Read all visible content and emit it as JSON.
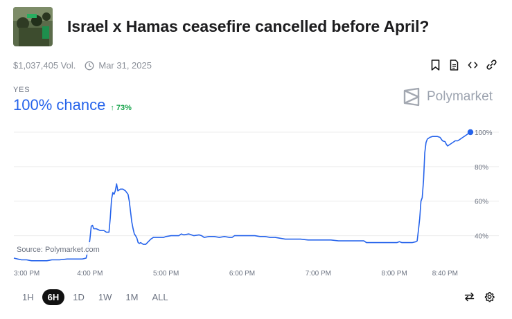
{
  "market": {
    "title": "Israel x Hamas ceasefire cancelled before April?",
    "volume": "$1,037,405 Vol.",
    "end_date": "Mar 31, 2025",
    "outcome_label": "YES",
    "chance_text": "100% chance",
    "change_text": "73%",
    "brand": "Polymarket",
    "source": "Source: Polymarket.com"
  },
  "icons": {
    "bookmark": "bookmark-icon",
    "document": "document-icon",
    "embed": "code-icon",
    "link": "link-icon",
    "clock": "clock-icon",
    "swap": "swap-icon",
    "settings": "gear-icon"
  },
  "range_controls": [
    {
      "label": "1H",
      "active": false
    },
    {
      "label": "6H",
      "active": true
    },
    {
      "label": "1D",
      "active": false
    },
    {
      "label": "1W",
      "active": false
    },
    {
      "label": "1M",
      "active": false
    },
    {
      "label": "ALL",
      "active": false
    }
  ],
  "colors": {
    "accent": "#2563eb",
    "positive": "#16a34a",
    "muted": "#8a8f98",
    "grid": "#ececec"
  },
  "chart_data": {
    "type": "line",
    "x_unit": "time",
    "y_unit": "percent",
    "x_tick_labels": [
      "3:00 PM",
      "4:00 PM",
      "5:00 PM",
      "6:00 PM",
      "7:00 PM",
      "8:00 PM",
      "8:40 PM"
    ],
    "x_tick_values": [
      0,
      60,
      120,
      180,
      240,
      300,
      340
    ],
    "y_tick_labels": [
      "40%",
      "60%",
      "80%",
      "100%"
    ],
    "y_tick_values": [
      40,
      60,
      80,
      100
    ],
    "xlim": [
      0,
      360
    ],
    "ylim": [
      25,
      100
    ],
    "grid": true,
    "series": [
      {
        "points": [
          [
            0,
            27
          ],
          [
            3,
            26.5
          ],
          [
            6,
            26
          ],
          [
            10,
            26
          ],
          [
            14,
            25.5
          ],
          [
            20,
            25.5
          ],
          [
            26,
            25.5
          ],
          [
            30,
            26
          ],
          [
            36,
            26
          ],
          [
            42,
            26.5
          ],
          [
            48,
            26.5
          ],
          [
            54,
            26.5
          ],
          [
            57,
            27
          ],
          [
            59,
            33
          ],
          [
            60,
            38
          ],
          [
            61,
            45.5
          ],
          [
            62,
            46
          ],
          [
            63,
            44
          ],
          [
            65,
            44
          ],
          [
            68,
            43
          ],
          [
            71,
            43
          ],
          [
            73,
            42
          ],
          [
            75,
            42
          ],
          [
            76,
            50
          ],
          [
            77,
            61
          ],
          [
            78,
            65
          ],
          [
            79,
            64
          ],
          [
            80,
            66
          ],
          [
            81,
            70
          ],
          [
            82,
            66
          ],
          [
            84,
            67
          ],
          [
            86,
            67
          ],
          [
            88,
            66
          ],
          [
            90,
            64
          ],
          [
            91,
            60
          ],
          [
            92,
            54
          ],
          [
            93,
            48
          ],
          [
            94,
            44
          ],
          [
            95,
            41
          ],
          [
            96,
            40
          ],
          [
            97,
            38.5
          ],
          [
            98,
            36
          ],
          [
            99,
            35.5
          ],
          [
            100,
            36
          ],
          [
            102,
            35
          ],
          [
            104,
            35
          ],
          [
            106,
            36.5
          ],
          [
            108,
            38
          ],
          [
            110,
            39
          ],
          [
            114,
            39
          ],
          [
            118,
            39
          ],
          [
            120,
            39.5
          ],
          [
            124,
            40
          ],
          [
            128,
            40
          ],
          [
            130,
            40
          ],
          [
            132,
            41
          ],
          [
            134,
            40.5
          ],
          [
            138,
            41
          ],
          [
            142,
            40
          ],
          [
            146,
            40.5
          ],
          [
            148,
            40
          ],
          [
            150,
            39
          ],
          [
            154,
            39.5
          ],
          [
            158,
            39.5
          ],
          [
            162,
            39
          ],
          [
            166,
            39.5
          ],
          [
            170,
            39
          ],
          [
            172,
            39
          ],
          [
            174,
            40
          ],
          [
            178,
            40
          ],
          [
            182,
            40
          ],
          [
            186,
            40
          ],
          [
            190,
            40
          ],
          [
            194,
            39.5
          ],
          [
            198,
            39.5
          ],
          [
            202,
            39
          ],
          [
            206,
            39
          ],
          [
            210,
            38.5
          ],
          [
            214,
            38
          ],
          [
            220,
            38
          ],
          [
            226,
            38
          ],
          [
            232,
            37.5
          ],
          [
            238,
            37.5
          ],
          [
            244,
            37.5
          ],
          [
            250,
            37.5
          ],
          [
            256,
            37
          ],
          [
            262,
            37
          ],
          [
            268,
            37
          ],
          [
            274,
            37
          ],
          [
            276,
            37
          ],
          [
            278,
            36
          ],
          [
            284,
            36
          ],
          [
            290,
            36
          ],
          [
            296,
            36
          ],
          [
            302,
            36
          ],
          [
            304,
            36.5
          ],
          [
            306,
            36
          ],
          [
            310,
            36
          ],
          [
            314,
            36
          ],
          [
            317,
            36.5
          ],
          [
            318,
            37
          ],
          [
            319,
            43
          ],
          [
            320,
            50
          ],
          [
            321,
            60
          ],
          [
            322,
            62
          ],
          [
            323,
            72
          ],
          [
            324,
            88
          ],
          [
            325,
            94
          ],
          [
            326,
            96
          ],
          [
            328,
            97
          ],
          [
            330,
            97.5
          ],
          [
            334,
            97.5
          ],
          [
            336,
            97
          ],
          [
            338,
            95
          ],
          [
            340,
            94.5
          ],
          [
            341,
            93
          ],
          [
            342,
            92
          ],
          [
            344,
            93
          ],
          [
            346,
            94
          ],
          [
            348,
            95
          ],
          [
            350,
            95
          ],
          [
            352,
            96
          ],
          [
            354,
            97
          ],
          [
            356,
            98
          ],
          [
            358,
            99
          ],
          [
            360,
            100
          ]
        ]
      }
    ]
  }
}
